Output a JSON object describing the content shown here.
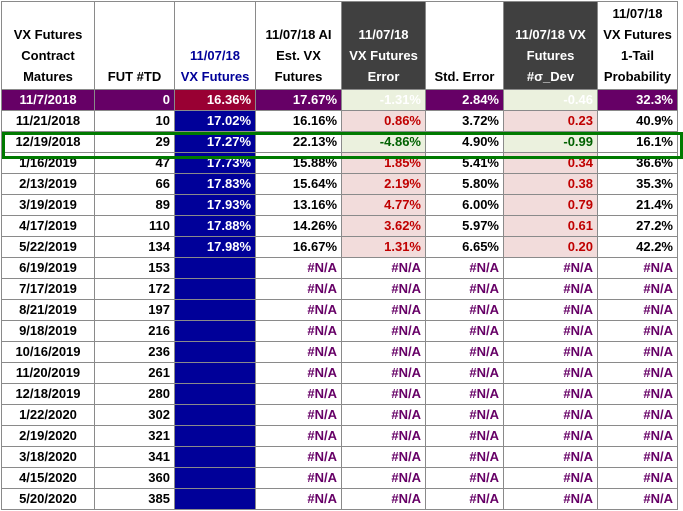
{
  "chart_data": {
    "type": "table",
    "columns": [
      "VX Futures Contract Matures",
      "FUT #TD",
      "11/07/18 VX Futures",
      "11/07/18 AI Est. VX Futures",
      "11/07/18 VX Futures Error",
      "Std. Error",
      "11/07/18 VX Futures #σ_Dev",
      "11/07/18 VX Futures 1-Tail Probability"
    ],
    "header_lines": [
      [
        "VX Futures",
        "Contract",
        "Matures"
      ],
      [
        "FUT #TD"
      ],
      [
        "11/07/18",
        "VX Futures"
      ],
      [
        "11/07/18 AI",
        "Est. VX",
        "Futures"
      ],
      [
        "11/07/18",
        "VX Futures",
        "Error"
      ],
      [
        "Std. Error"
      ],
      [
        "11/07/18 VX",
        "Futures",
        "#σ_Dev"
      ],
      [
        "11/07/18",
        "VX Futures",
        "1-Tail",
        "Probability"
      ]
    ],
    "rows": [
      [
        "11/7/2018",
        "0",
        "16.36%",
        "17.67%",
        "-1.31%",
        "2.84%",
        "-0.46",
        "32.3%"
      ],
      [
        "11/21/2018",
        "10",
        "17.02%",
        "16.16%",
        "0.86%",
        "3.72%",
        "0.23",
        "40.9%"
      ],
      [
        "12/19/2018",
        "29",
        "17.27%",
        "22.13%",
        "-4.86%",
        "4.90%",
        "-0.99",
        "16.1%"
      ],
      [
        "1/16/2019",
        "47",
        "17.73%",
        "15.88%",
        "1.85%",
        "5.41%",
        "0.34",
        "36.6%"
      ],
      [
        "2/13/2019",
        "66",
        "17.83%",
        "15.64%",
        "2.19%",
        "5.80%",
        "0.38",
        "35.3%"
      ],
      [
        "3/19/2019",
        "89",
        "17.93%",
        "13.16%",
        "4.77%",
        "6.00%",
        "0.79",
        "21.4%"
      ],
      [
        "4/17/2019",
        "110",
        "17.88%",
        "14.26%",
        "3.62%",
        "5.97%",
        "0.61",
        "27.2%"
      ],
      [
        "5/22/2019",
        "134",
        "17.98%",
        "16.67%",
        "1.31%",
        "6.65%",
        "0.20",
        "42.2%"
      ],
      [
        "6/19/2019",
        "153",
        "",
        "#N/A",
        "#N/A",
        "#N/A",
        "#N/A",
        "#N/A"
      ],
      [
        "7/17/2019",
        "172",
        "",
        "#N/A",
        "#N/A",
        "#N/A",
        "#N/A",
        "#N/A"
      ],
      [
        "8/21/2019",
        "197",
        "",
        "#N/A",
        "#N/A",
        "#N/A",
        "#N/A",
        "#N/A"
      ],
      [
        "9/18/2019",
        "216",
        "",
        "#N/A",
        "#N/A",
        "#N/A",
        "#N/A",
        "#N/A"
      ],
      [
        "10/16/2019",
        "236",
        "",
        "#N/A",
        "#N/A",
        "#N/A",
        "#N/A",
        "#N/A"
      ],
      [
        "11/20/2019",
        "261",
        "",
        "#N/A",
        "#N/A",
        "#N/A",
        "#N/A",
        "#N/A"
      ],
      [
        "12/18/2019",
        "280",
        "",
        "#N/A",
        "#N/A",
        "#N/A",
        "#N/A",
        "#N/A"
      ],
      [
        "1/22/2020",
        "302",
        "",
        "#N/A",
        "#N/A",
        "#N/A",
        "#N/A",
        "#N/A"
      ],
      [
        "2/19/2020",
        "321",
        "",
        "#N/A",
        "#N/A",
        "#N/A",
        "#N/A",
        "#N/A"
      ],
      [
        "3/18/2020",
        "341",
        "",
        "#N/A",
        "#N/A",
        "#N/A",
        "#N/A",
        "#N/A"
      ],
      [
        "4/15/2020",
        "360",
        "",
        "#N/A",
        "#N/A",
        "#N/A",
        "#N/A",
        "#N/A"
      ],
      [
        "5/20/2020",
        "385",
        "",
        "#N/A",
        "#N/A",
        "#N/A",
        "#N/A",
        "#N/A"
      ]
    ],
    "highlighted_row": "12/19/2018"
  },
  "colors": {
    "navy": "#000099",
    "purple": "#660066",
    "dark_header": "#404040",
    "error_positive_text": "#c00000",
    "error_negative_text": "#006100",
    "positive_fill": "#f2dcdb",
    "negative_fill": "#ebf1de",
    "highlight_border": "#007a00",
    "first_row_fill": "#660066",
    "first_row_vx_fill": "#990033"
  }
}
